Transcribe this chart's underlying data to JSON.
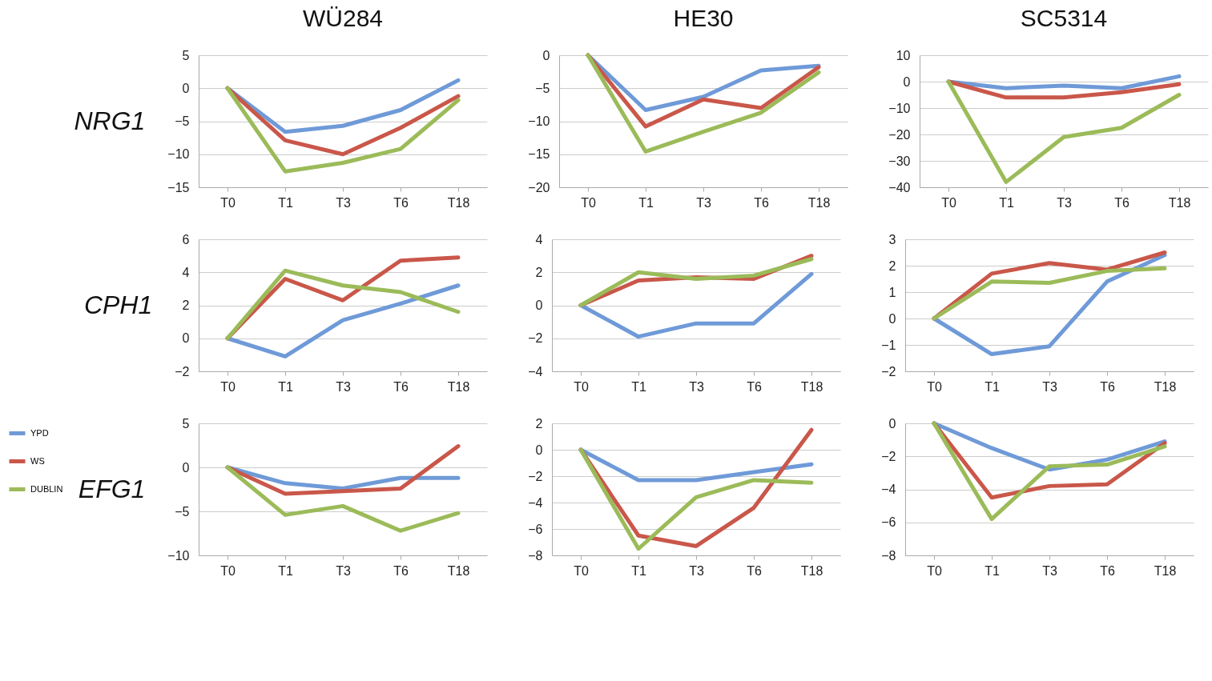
{
  "chart_data": [
    {
      "type": "line",
      "title": "WÜ284",
      "ylabel": "NRG1",
      "categories": [
        "T0",
        "T1",
        "T3",
        "T6",
        "T18"
      ],
      "ylim": [
        -15,
        5
      ],
      "yticks": [
        -15,
        -10,
        -5,
        0,
        5
      ],
      "grid": "y",
      "series": [
        {
          "color": "#6f9ad8",
          "values": [
            0,
            -6.6,
            -5.7,
            -3.3,
            1.2
          ]
        },
        {
          "color": "#c9574a",
          "values": [
            0,
            -7.9,
            -10,
            -6,
            -1.2
          ]
        },
        {
          "color": "#9bbb59",
          "values": [
            0,
            -12.6,
            -11.3,
            -9.2,
            -1.8
          ]
        }
      ]
    },
    {
      "type": "line",
      "title": "HE30",
      "categories": [
        "T0",
        "T1",
        "T3",
        "T6",
        "T18"
      ],
      "ylim": [
        -20,
        0
      ],
      "yticks": [
        -20,
        -15,
        -10,
        -5,
        0
      ],
      "grid": "y",
      "series": [
        {
          "color": "#6f9ad8",
          "values": [
            0,
            -8.3,
            -6.3,
            -2.3,
            -1.6
          ]
        },
        {
          "color": "#c9574a",
          "values": [
            0,
            -10.8,
            -6.7,
            -8,
            -1.8
          ]
        },
        {
          "color": "#9bbb59",
          "values": [
            0,
            -14.6,
            -11.6,
            -8.7,
            -2.6
          ]
        }
      ]
    },
    {
      "type": "line",
      "title": "SC5314",
      "categories": [
        "T0",
        "T1",
        "T3",
        "T6",
        "T18"
      ],
      "ylim": [
        -40,
        10
      ],
      "yticks": [
        -40,
        -30,
        -20,
        -10,
        0,
        10
      ],
      "grid": "y",
      "series": [
        {
          "color": "#6f9ad8",
          "values": [
            0,
            -2.5,
            -1.5,
            -2.5,
            2
          ]
        },
        {
          "color": "#c9574a",
          "values": [
            0,
            -6,
            -6,
            -4,
            -1
          ]
        },
        {
          "color": "#9bbb59",
          "values": [
            0,
            -38,
            -21,
            -17.5,
            -5
          ]
        }
      ]
    },
    {
      "type": "line",
      "ylabel": "CPH1",
      "categories": [
        "T0",
        "T1",
        "T3",
        "T6",
        "T18"
      ],
      "ylim": [
        -2,
        6
      ],
      "yticks": [
        -2,
        0,
        2,
        4,
        6
      ],
      "grid": "y",
      "series": [
        {
          "color": "#6f9ad8",
          "values": [
            0,
            -1.1,
            1.1,
            2.1,
            3.2
          ]
        },
        {
          "color": "#c9574a",
          "values": [
            0,
            3.6,
            2.3,
            4.7,
            4.9
          ]
        },
        {
          "color": "#9bbb59",
          "values": [
            0,
            4.1,
            3.2,
            2.8,
            1.6
          ]
        }
      ]
    },
    {
      "type": "line",
      "categories": [
        "T0",
        "T1",
        "T3",
        "T6",
        "T18"
      ],
      "ylim": [
        -4,
        4
      ],
      "yticks": [
        -4,
        -2,
        0,
        2,
        4
      ],
      "grid": "y",
      "series": [
        {
          "color": "#6f9ad8",
          "values": [
            0,
            -1.9,
            -1.1,
            -1.1,
            1.9
          ]
        },
        {
          "color": "#c9574a",
          "values": [
            0,
            1.5,
            1.7,
            1.6,
            3.0
          ]
        },
        {
          "color": "#9bbb59",
          "values": [
            0,
            2.0,
            1.6,
            1.8,
            2.8
          ]
        }
      ]
    },
    {
      "type": "line",
      "categories": [
        "T0",
        "T1",
        "T3",
        "T6",
        "T18"
      ],
      "ylim": [
        -2,
        3
      ],
      "yticks": [
        -2,
        -1,
        0,
        1,
        2,
        3
      ],
      "grid": "y",
      "series": [
        {
          "color": "#6f9ad8",
          "values": [
            0,
            -1.35,
            -1.05,
            1.4,
            2.4
          ]
        },
        {
          "color": "#c9574a",
          "values": [
            0,
            1.7,
            2.1,
            1.85,
            2.5
          ]
        },
        {
          "color": "#9bbb59",
          "values": [
            0,
            1.4,
            1.35,
            1.8,
            1.9
          ]
        }
      ]
    },
    {
      "type": "line",
      "ylabel": "EFG1",
      "legend": "left",
      "categories": [
        "T0",
        "T1",
        "T3",
        "T6",
        "T18"
      ],
      "ylim": [
        -10,
        5
      ],
      "yticks": [
        -10,
        -5,
        0,
        5
      ],
      "grid": "y",
      "series": [
        {
          "name": "YPD",
          "color": "#6f9ad8",
          "values": [
            0,
            -1.8,
            -2.4,
            -1.2,
            -1.2
          ]
        },
        {
          "name": "WS",
          "color": "#c9574a",
          "values": [
            0,
            -3.0,
            -2.7,
            -2.4,
            2.4
          ]
        },
        {
          "name": "DUBLIN",
          "color": "#9bbb59",
          "values": [
            0,
            -5.4,
            -4.4,
            -7.2,
            -5.2
          ]
        }
      ]
    },
    {
      "type": "line",
      "categories": [
        "T0",
        "T1",
        "T3",
        "T6",
        "T18"
      ],
      "ylim": [
        -8,
        2
      ],
      "yticks": [
        -8,
        -6,
        -4,
        -2,
        0,
        2
      ],
      "grid": "y",
      "series": [
        {
          "color": "#6f9ad8",
          "values": [
            0,
            -2.3,
            -2.3,
            -1.7,
            -1.1
          ]
        },
        {
          "color": "#c9574a",
          "values": [
            0,
            -6.5,
            -7.3,
            -4.4,
            1.5
          ]
        },
        {
          "color": "#9bbb59",
          "values": [
            0,
            -7.5,
            -3.6,
            -2.3,
            -2.5
          ]
        }
      ]
    },
    {
      "type": "line",
      "categories": [
        "T0",
        "T1",
        "T3",
        "T6",
        "T18"
      ],
      "ylim": [
        -8,
        0
      ],
      "yticks": [
        -8,
        -6,
        -4,
        -2,
        0
      ],
      "grid": "y",
      "series": [
        {
          "color": "#6f9ad8",
          "values": [
            0,
            -1.5,
            -2.8,
            -2.2,
            -1.1
          ]
        },
        {
          "color": "#c9574a",
          "values": [
            0,
            -4.5,
            -3.8,
            -3.7,
            -1.2
          ]
        },
        {
          "color": "#9bbb59",
          "values": [
            0,
            -5.8,
            -2.6,
            -2.5,
            -1.4
          ]
        }
      ]
    }
  ]
}
